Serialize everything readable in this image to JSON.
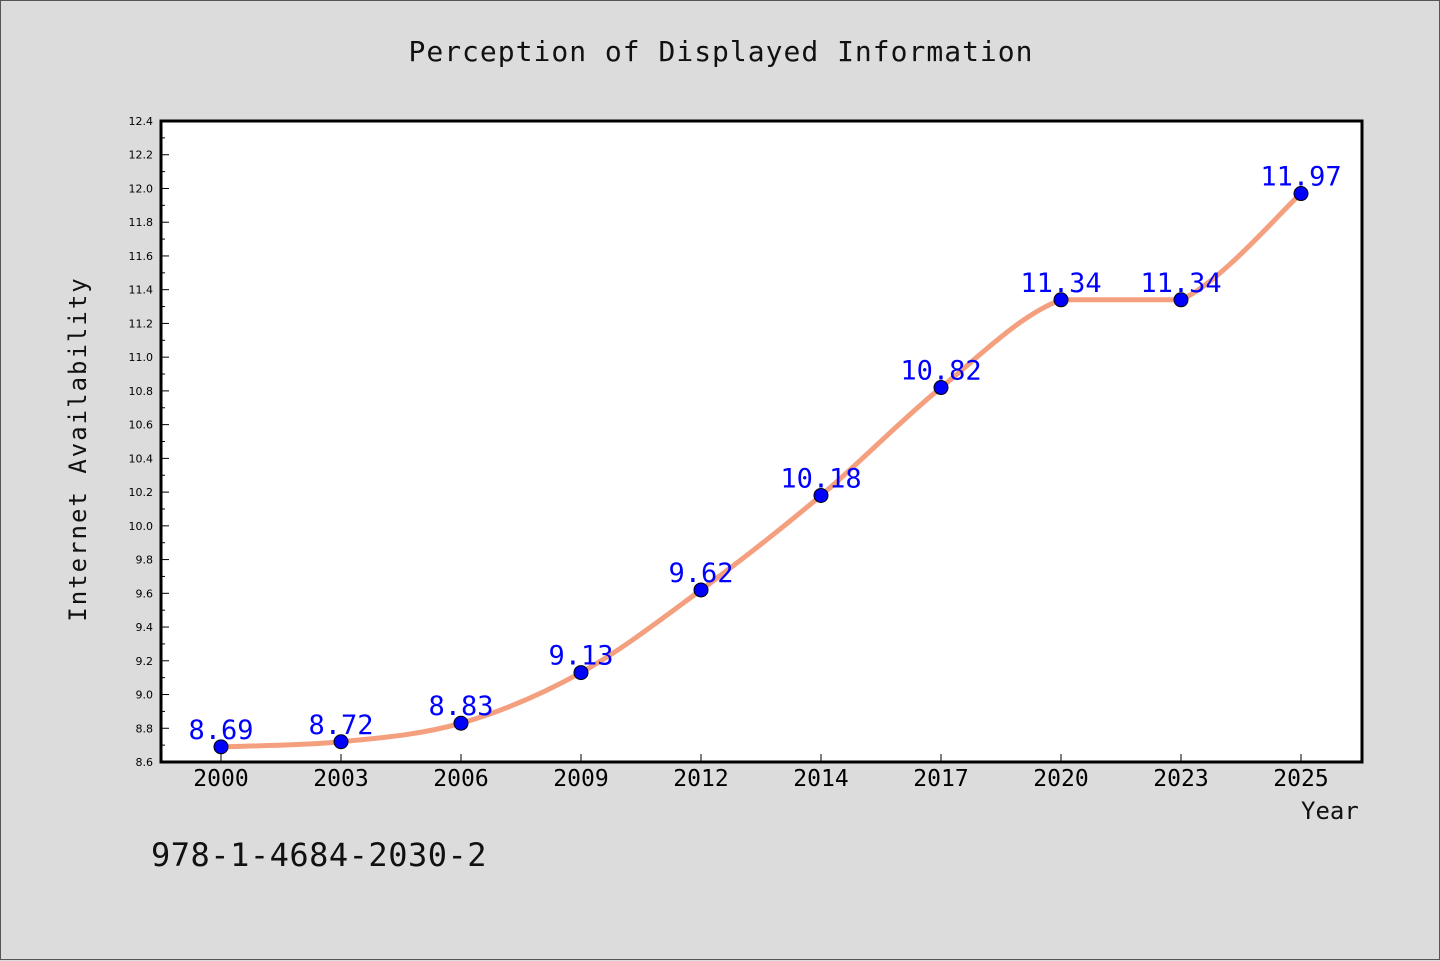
{
  "chart_data": {
    "type": "line",
    "title": "Perception of Displayed Information",
    "xlabel": "Year",
    "ylabel": "Internet Availability",
    "categories": [
      "2000",
      "2003",
      "2006",
      "2009",
      "2012",
      "2014",
      "2017",
      "2020",
      "2023",
      "2025"
    ],
    "series": [
      {
        "values": [
          8.69,
          8.72,
          8.83,
          9.13,
          9.62,
          10.18,
          10.82,
          11.34,
          11.34,
          11.97
        ],
        "data_labels": [
          "8.69",
          "8.72",
          "8.83",
          "9.13",
          "9.62",
          "10.18",
          "10.82",
          "11.34",
          "11.34",
          "11.97"
        ],
        "line_color": "#f4a07e",
        "marker_color": "#0000ff",
        "label_color": "#0000ff"
      }
    ],
    "ylim": [
      8.6,
      12.4
    ],
    "yticks": [
      "8.6",
      "8.8",
      "9.0",
      "9.2",
      "9.4",
      "9.6",
      "9.8",
      "10.0",
      "10.2",
      "10.4",
      "10.6",
      "10.8",
      "11.0",
      "11.2",
      "11.4",
      "11.6",
      "11.8",
      "12.0",
      "12.2",
      "12.4"
    ],
    "grid": false,
    "legend": "none"
  },
  "footer": {
    "isbn": "978-1-4684-2030-2"
  },
  "colors": {
    "background": "#dcdcdc",
    "plot_background": "#ffffff"
  }
}
